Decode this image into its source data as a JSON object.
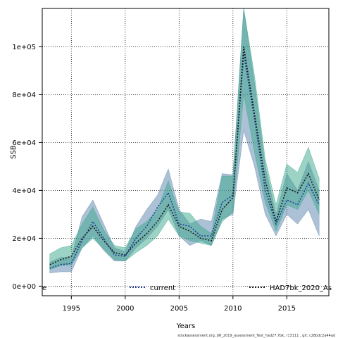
{
  "chart_data": {
    "type": "line",
    "title": "",
    "xlabel": "Years",
    "ylabel": "SSB",
    "xlim": [
      1992.3,
      2018.9
    ],
    "ylim": [
      -4000,
      116000
    ],
    "grid": true,
    "legend_position": "bottom",
    "x_ticks": [
      1995,
      2000,
      2005,
      2010,
      2015
    ],
    "x_tick_labels": [
      "1995",
      "2000",
      "2005",
      "2010",
      "2015"
    ],
    "y_ticks": [
      0,
      20000,
      40000,
      60000,
      80000,
      100000
    ],
    "y_tick_labels": [
      "0e+00",
      "2e+04",
      "4e+04",
      "6e+04",
      "8e+04",
      "1e+05"
    ],
    "corner_label": "e",
    "series": [
      {
        "name": "current",
        "color": "#1f3f99",
        "band_color": "#5a84ad",
        "x": [
          1993,
          1994,
          1995,
          1996,
          1997,
          1998,
          1999,
          2000,
          2001,
          2002,
          2003,
          2004,
          2005,
          2006,
          2007,
          2008,
          2009,
          2010,
          2011,
          2012,
          2013,
          2014,
          2015,
          2016,
          2017,
          2018
        ],
        "y": [
          7500,
          9000,
          9500,
          19000,
          27000,
          20000,
          13000,
          12500,
          20000,
          25000,
          33000,
          39000,
          26000,
          25000,
          21000,
          21000,
          35000,
          38000,
          97000,
          70000,
          40000,
          26000,
          36000,
          34000,
          43000,
          34000
        ],
        "lower": [
          5500,
          6000,
          6000,
          16000,
          21000,
          15000,
          10500,
          10500,
          16000,
          20000,
          25000,
          32000,
          21000,
          17000,
          19000,
          17000,
          28000,
          30000,
          65000,
          50000,
          30000,
          21000,
          30000,
          26000,
          32000,
          21000
        ],
        "upper": [
          10000,
          12000,
          12000,
          29000,
          36000,
          26000,
          16000,
          14500,
          25000,
          32000,
          38000,
          49000,
          32000,
          26000,
          28000,
          27000,
          47000,
          46500,
          116000,
          85000,
          50000,
          30000,
          47000,
          40000,
          52000,
          40000
        ]
      },
      {
        "name": "HAD7bk_2020_As",
        "color": "#1a1a1a",
        "band_color": "#3aa88c",
        "x": [
          1993,
          1994,
          1995,
          1996,
          1997,
          1998,
          1999,
          2000,
          2001,
          2002,
          2003,
          2004,
          2005,
          2006,
          2007,
          2008,
          2009,
          2010,
          2011,
          2012,
          2013,
          2014,
          2015,
          2016,
          2017,
          2018
        ],
        "y": [
          9000,
          11000,
          12500,
          20000,
          25000,
          19000,
          14000,
          13000,
          18000,
          22000,
          27000,
          34000,
          25000,
          23000,
          20000,
          19000,
          32000,
          37000,
          100000,
          72000,
          44000,
          27000,
          41000,
          39000,
          47000,
          36000
        ],
        "lower": [
          7000,
          8500,
          9000,
          16000,
          20000,
          15500,
          11000,
          10500,
          14000,
          17000,
          21000,
          28000,
          21000,
          19000,
          18000,
          17000,
          27000,
          31000,
          80000,
          56000,
          35000,
          23000,
          34000,
          32000,
          40000,
          30000
        ],
        "upper": [
          13500,
          16000,
          17000,
          26000,
          33000,
          23500,
          17000,
          16000,
          24000,
          27000,
          32000,
          44000,
          31000,
          30500,
          25000,
          22000,
          46000,
          46000,
          116000,
          88000,
          53000,
          34000,
          51000,
          47500,
          58000,
          45000
        ]
      }
    ]
  },
  "footer": "stockassessment.org, JW_2019_assessment_Test_had27.7bk, r13111 , git: c28bdc2a44ad"
}
